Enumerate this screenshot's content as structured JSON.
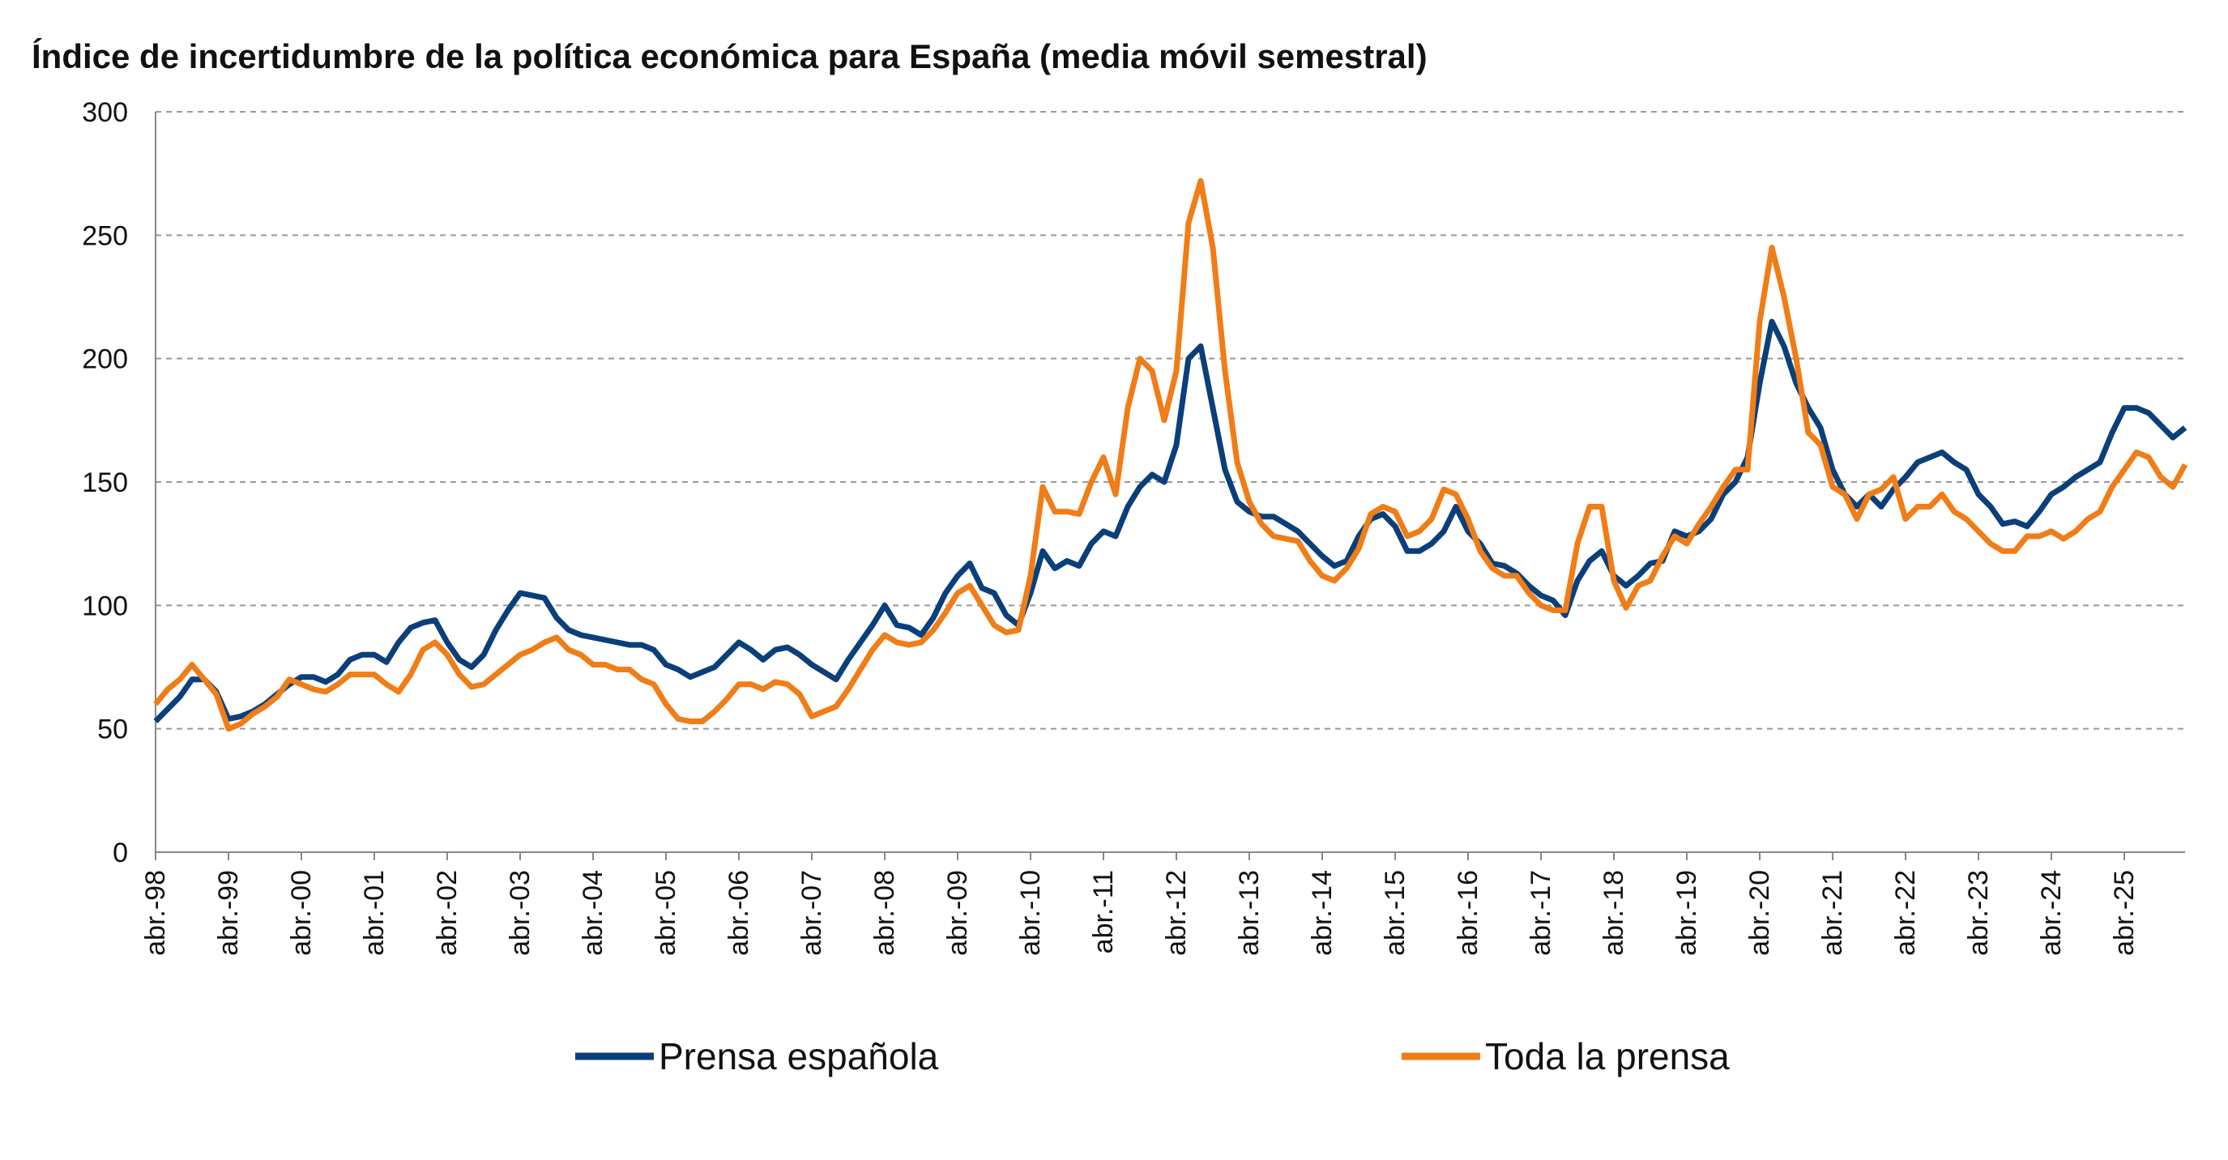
{
  "chart_data": {
    "type": "line",
    "title": "Índice de incertidumbre de la política económica para España (media móvil semestral)",
    "categories": [
      "abr.-98",
      null,
      null,
      null,
      null,
      null,
      "abr.-99",
      null,
      null,
      null,
      null,
      null,
      "abr.-00",
      null,
      null,
      null,
      null,
      null,
      "abr.-01",
      null,
      null,
      null,
      null,
      null,
      "abr.-02",
      null,
      null,
      null,
      null,
      null,
      "abr.-03",
      null,
      null,
      null,
      null,
      null,
      "abr.-04",
      null,
      null,
      null,
      null,
      null,
      "abr.-05",
      null,
      null,
      null,
      null,
      null,
      "abr.-06",
      null,
      null,
      null,
      null,
      null,
      "abr.-07",
      null,
      null,
      null,
      null,
      null,
      "abr.-08",
      null,
      null,
      null,
      null,
      null,
      "abr.-09",
      null,
      null,
      null,
      null,
      null,
      "abr.-10",
      null,
      null,
      null,
      null,
      null,
      "abr.-11",
      null,
      null,
      null,
      null,
      null,
      "abr.-12",
      null,
      null,
      null,
      null,
      null,
      "abr.-13",
      null,
      null,
      null,
      null,
      null,
      "abr.-14",
      null,
      null,
      null,
      null,
      null,
      "abr.-15",
      null,
      null,
      null,
      null,
      null,
      "abr.-16",
      null,
      null,
      null,
      null,
      null,
      "abr.-17",
      null,
      null,
      null,
      null,
      null,
      "abr.-18",
      null,
      null,
      null,
      null,
      null,
      "abr.-19",
      null,
      null,
      null,
      null,
      null,
      "abr.-20",
      null,
      null,
      null,
      null,
      null,
      "abr.-21",
      null,
      null,
      null,
      null,
      null,
      "abr.-22",
      null,
      null,
      null,
      null,
      null,
      "abr.-23",
      null,
      null,
      null,
      null,
      null,
      "abr.-24",
      null,
      null,
      null,
      null,
      null,
      "abr.-25",
      null,
      null,
      null,
      null,
      null
    ],
    "series": [
      {
        "name": "Prensa española",
        "color": "#0b3f7a",
        "values": [
          53,
          58,
          63,
          70,
          70,
          65,
          54,
          55,
          57,
          60,
          64,
          68,
          71,
          71,
          69,
          72,
          78,
          80,
          80,
          77,
          85,
          91,
          93,
          94,
          85,
          78,
          75,
          80,
          90,
          98,
          105,
          104,
          103,
          95,
          90,
          88,
          87,
          86,
          85,
          84,
          84,
          82,
          76,
          74,
          71,
          73,
          75,
          80,
          85,
          82,
          78,
          82,
          83,
          80,
          76,
          73,
          70,
          78,
          85,
          92,
          100,
          92,
          91,
          88,
          95,
          105,
          112,
          117,
          107,
          105,
          96,
          92,
          105,
          122,
          115,
          118,
          116,
          125,
          130,
          128,
          140,
          148,
          153,
          150,
          165,
          200,
          205,
          180,
          155,
          142,
          138,
          136,
          136,
          133,
          130,
          125,
          120,
          116,
          118,
          128,
          135,
          137,
          132,
          122,
          122,
          125,
          130,
          140,
          130,
          125,
          117,
          116,
          113,
          108,
          104,
          102,
          96,
          110,
          118,
          122,
          112,
          108,
          112,
          117,
          118,
          130,
          128,
          130,
          135,
          145,
          150,
          160,
          190,
          215,
          205,
          190,
          180,
          172,
          155,
          145,
          140,
          145,
          140,
          147,
          152,
          158,
          160,
          162,
          158,
          155,
          145,
          140,
          133,
          134,
          132,
          138,
          145,
          148,
          152,
          155,
          158,
          170,
          180,
          180,
          178,
          173,
          168,
          172
        ]
      },
      {
        "name": "Toda la prensa",
        "color": "#f07d17",
        "values": [
          60,
          66,
          70,
          76,
          70,
          64,
          50,
          52,
          56,
          59,
          63,
          70,
          68,
          66,
          65,
          68,
          72,
          72,
          72,
          68,
          65,
          72,
          82,
          85,
          80,
          72,
          67,
          68,
          72,
          76,
          80,
          82,
          85,
          87,
          82,
          80,
          76,
          76,
          74,
          74,
          70,
          68,
          60,
          54,
          53,
          53,
          57,
          62,
          68,
          68,
          66,
          69,
          68,
          64,
          55,
          57,
          59,
          66,
          74,
          82,
          88,
          85,
          84,
          85,
          90,
          97,
          105,
          108,
          100,
          92,
          89,
          90,
          112,
          148,
          138,
          138,
          137,
          150,
          160,
          145,
          180,
          200,
          195,
          175,
          195,
          255,
          272,
          245,
          195,
          158,
          142,
          133,
          128,
          127,
          126,
          118,
          112,
          110,
          115,
          123,
          137,
          140,
          138,
          128,
          130,
          135,
          147,
          145,
          135,
          122,
          115,
          112,
          112,
          105,
          100,
          98,
          98,
          125,
          140,
          140,
          110,
          99,
          108,
          110,
          120,
          128,
          125,
          133,
          140,
          148,
          155,
          155,
          215,
          245,
          225,
          200,
          170,
          165,
          148,
          145,
          135,
          145,
          147,
          152,
          135,
          140,
          140,
          145,
          138,
          135,
          130,
          125,
          122,
          122,
          128,
          128,
          130,
          127,
          130,
          135,
          138,
          148,
          155,
          162,
          160,
          152,
          148,
          157
        ]
      }
    ],
    "ylim": [
      0,
      300
    ],
    "yticks": [
      0,
      50,
      100,
      150,
      200,
      250,
      300
    ],
    "grid": true
  }
}
